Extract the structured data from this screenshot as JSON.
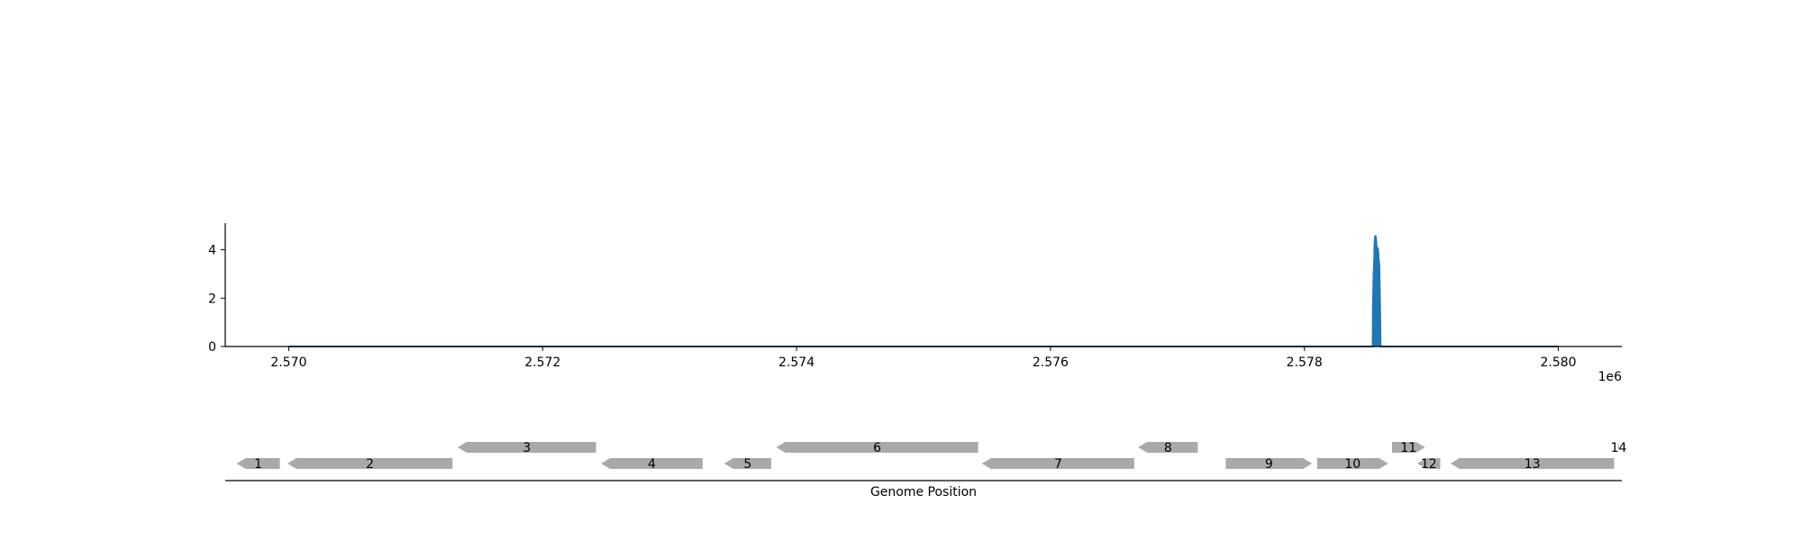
{
  "chart_data": {
    "type": "area",
    "xlabel": "",
    "ylabel": "",
    "xlim": [
      2569500,
      2580500
    ],
    "ylim": [
      0,
      5.1
    ],
    "grid": false,
    "legend": "none",
    "x_offset_label": "1e6",
    "x_ticks": [
      2570000,
      2572000,
      2574000,
      2576000,
      2578000,
      2580000
    ],
    "x_tick_labels": [
      "2.570",
      "2.572",
      "2.574",
      "2.576",
      "2.578",
      "2.580"
    ],
    "y_ticks": [
      0,
      2,
      4
    ],
    "y_tick_labels": [
      "0",
      "2",
      "4"
    ],
    "series_color": "#1f77b4",
    "series": [
      {
        "x": [
          2570000,
          2578538,
          2578540,
          2578545,
          2578550,
          2578553,
          2578556,
          2578560,
          2578565,
          2578570,
          2578575,
          2578578,
          2578582,
          2578585,
          2578590,
          2578595,
          2578600,
          2580000
        ],
        "values": [
          0,
          0,
          1.7,
          3.0,
          3.6,
          4.3,
          4.5,
          4.6,
          4.4,
          4.0,
          3.8,
          4.1,
          3.9,
          3.6,
          3.4,
          2.0,
          0,
          0
        ]
      }
    ],
    "track": {
      "xlabel": "Genome Position",
      "gene_color": "#a9a9a9",
      "genes": [
        {
          "label": "1",
          "start": 2569590,
          "end": 2569930,
          "strand": "-",
          "row": 0
        },
        {
          "label": "2",
          "start": 2569990,
          "end": 2571290,
          "strand": "-",
          "row": 0
        },
        {
          "label": "3",
          "start": 2571330,
          "end": 2572420,
          "strand": "-",
          "row": 1
        },
        {
          "label": "4",
          "start": 2572460,
          "end": 2573260,
          "strand": "-",
          "row": 0
        },
        {
          "label": "5",
          "start": 2573430,
          "end": 2573800,
          "strand": "-",
          "row": 0
        },
        {
          "label": "6",
          "start": 2573840,
          "end": 2575430,
          "strand": "-",
          "row": 1
        },
        {
          "label": "7",
          "start": 2575460,
          "end": 2576660,
          "strand": "-",
          "row": 0
        },
        {
          "label": "8",
          "start": 2576690,
          "end": 2577160,
          "strand": "-",
          "row": 1
        },
        {
          "label": "9",
          "start": 2577380,
          "end": 2578060,
          "strand": "+",
          "row": 0
        },
        {
          "label": "10",
          "start": 2578100,
          "end": 2578660,
          "strand": "+",
          "row": 0
        },
        {
          "label": "11",
          "start": 2578690,
          "end": 2578950,
          "strand": "+",
          "row": 1
        },
        {
          "label": "12",
          "start": 2578890,
          "end": 2579070,
          "strand": "-",
          "row": 0
        },
        {
          "label": "13",
          "start": 2579150,
          "end": 2580440,
          "strand": "-",
          "row": 0
        },
        {
          "label": "14",
          "start": 2580470,
          "end": 2580480,
          "strand": "+",
          "row": 1
        }
      ]
    }
  }
}
